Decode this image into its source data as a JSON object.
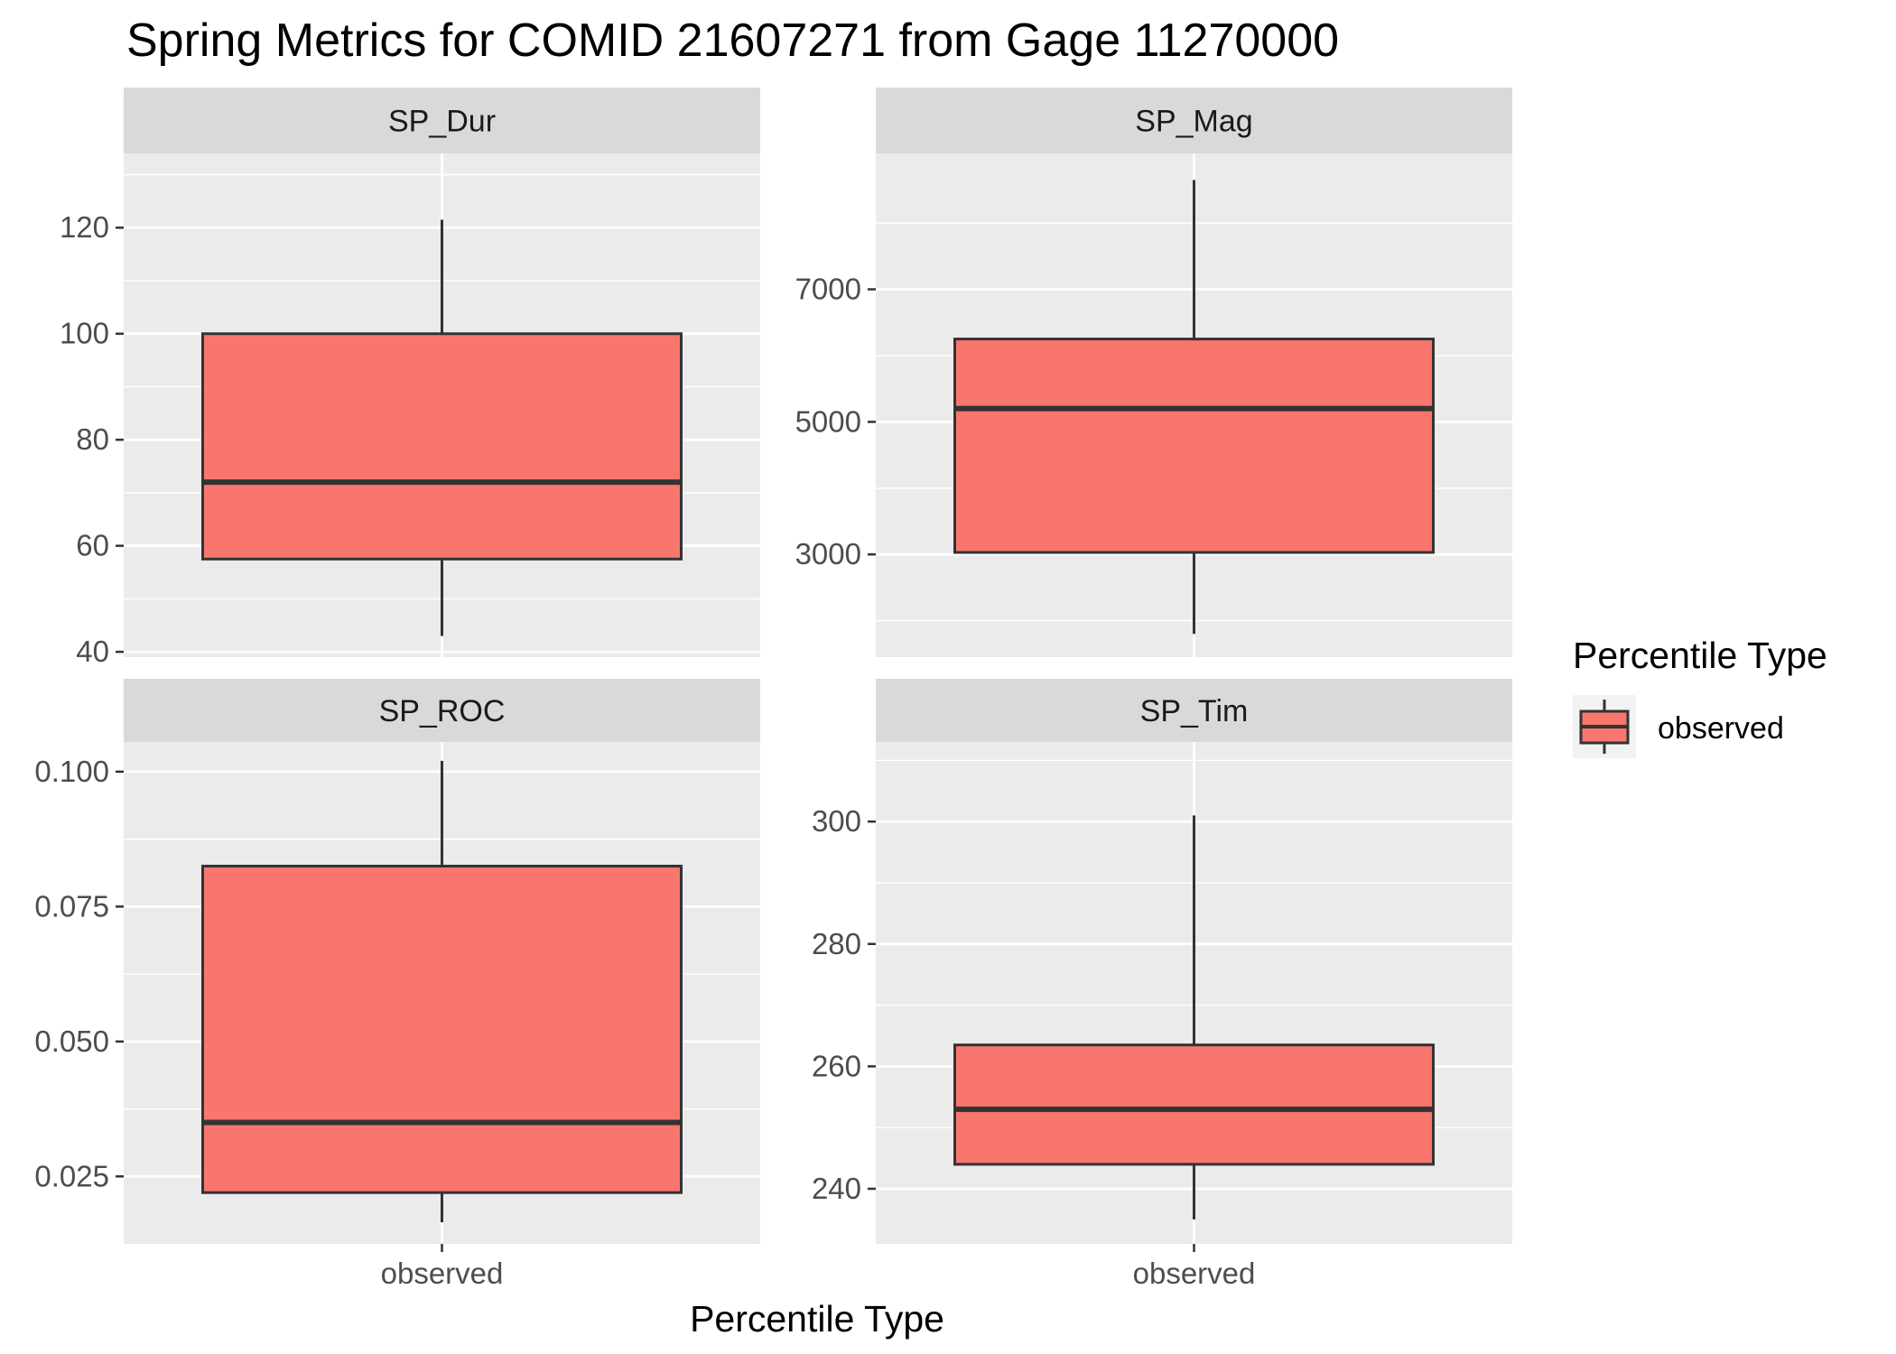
{
  "chart_data": {
    "type": "boxplot",
    "title": "Spring Metrics for COMID 21607271 from Gage 11270000",
    "xlabel": "Percentile Type",
    "categories": [
      "observed"
    ],
    "legend": {
      "title": "Percentile Type",
      "placement": "right",
      "entries": [
        {
          "name": "observed",
          "color": "#F8766D"
        }
      ]
    },
    "colors": {
      "box_fill": "#F8766D",
      "panel_bg": "#EBEBEB",
      "strip_bg": "#D9D9D9",
      "grid": "#FFFFFF",
      "box_line": "#333333"
    },
    "panels": [
      {
        "name": "SP_Dur",
        "ylim": [
          39,
          134
        ],
        "yticks": [
          40,
          60,
          80,
          100,
          120
        ],
        "tick_labels": [
          "40",
          "60",
          "80",
          "100",
          "120"
        ],
        "ytick_minor": [
          50,
          70,
          90,
          110,
          130
        ],
        "box": {
          "lower_whisker": 43,
          "q1": 57.5,
          "median": 72,
          "q3": 100,
          "upper_whisker": 121.5
        }
      },
      {
        "name": "SP_Mag",
        "ylim": [
          1450,
          9050
        ],
        "yticks": [
          3000,
          5000,
          7000
        ],
        "tick_labels": [
          "3000",
          "5000",
          "7000"
        ],
        "ytick_minor": [
          2000,
          4000,
          6000,
          8000
        ],
        "box": {
          "lower_whisker": 1800,
          "q1": 3030,
          "median": 5200,
          "q3": 6250,
          "upper_whisker": 8650
        }
      },
      {
        "name": "SP_ROC",
        "ylim": [
          0.0125,
          0.1055
        ],
        "yticks": [
          0.025,
          0.05,
          0.075,
          0.1
        ],
        "tick_labels": [
          "0.025",
          "0.050",
          "0.075",
          "0.100"
        ],
        "ytick_minor": [
          0.0375,
          0.0625,
          0.0875
        ],
        "box": {
          "lower_whisker": 0.0165,
          "q1": 0.022,
          "median": 0.035,
          "q3": 0.0825,
          "upper_whisker": 0.102
        }
      },
      {
        "name": "SP_Tim",
        "ylim": [
          231,
          313
        ],
        "yticks": [
          240,
          260,
          280,
          300
        ],
        "tick_labels": [
          "240",
          "260",
          "280",
          "300"
        ],
        "ytick_minor": [
          250,
          270,
          290,
          310
        ],
        "box": {
          "lower_whisker": 235,
          "q1": 244,
          "median": 253,
          "q3": 263.5,
          "upper_whisker": 301
        }
      }
    ]
  }
}
